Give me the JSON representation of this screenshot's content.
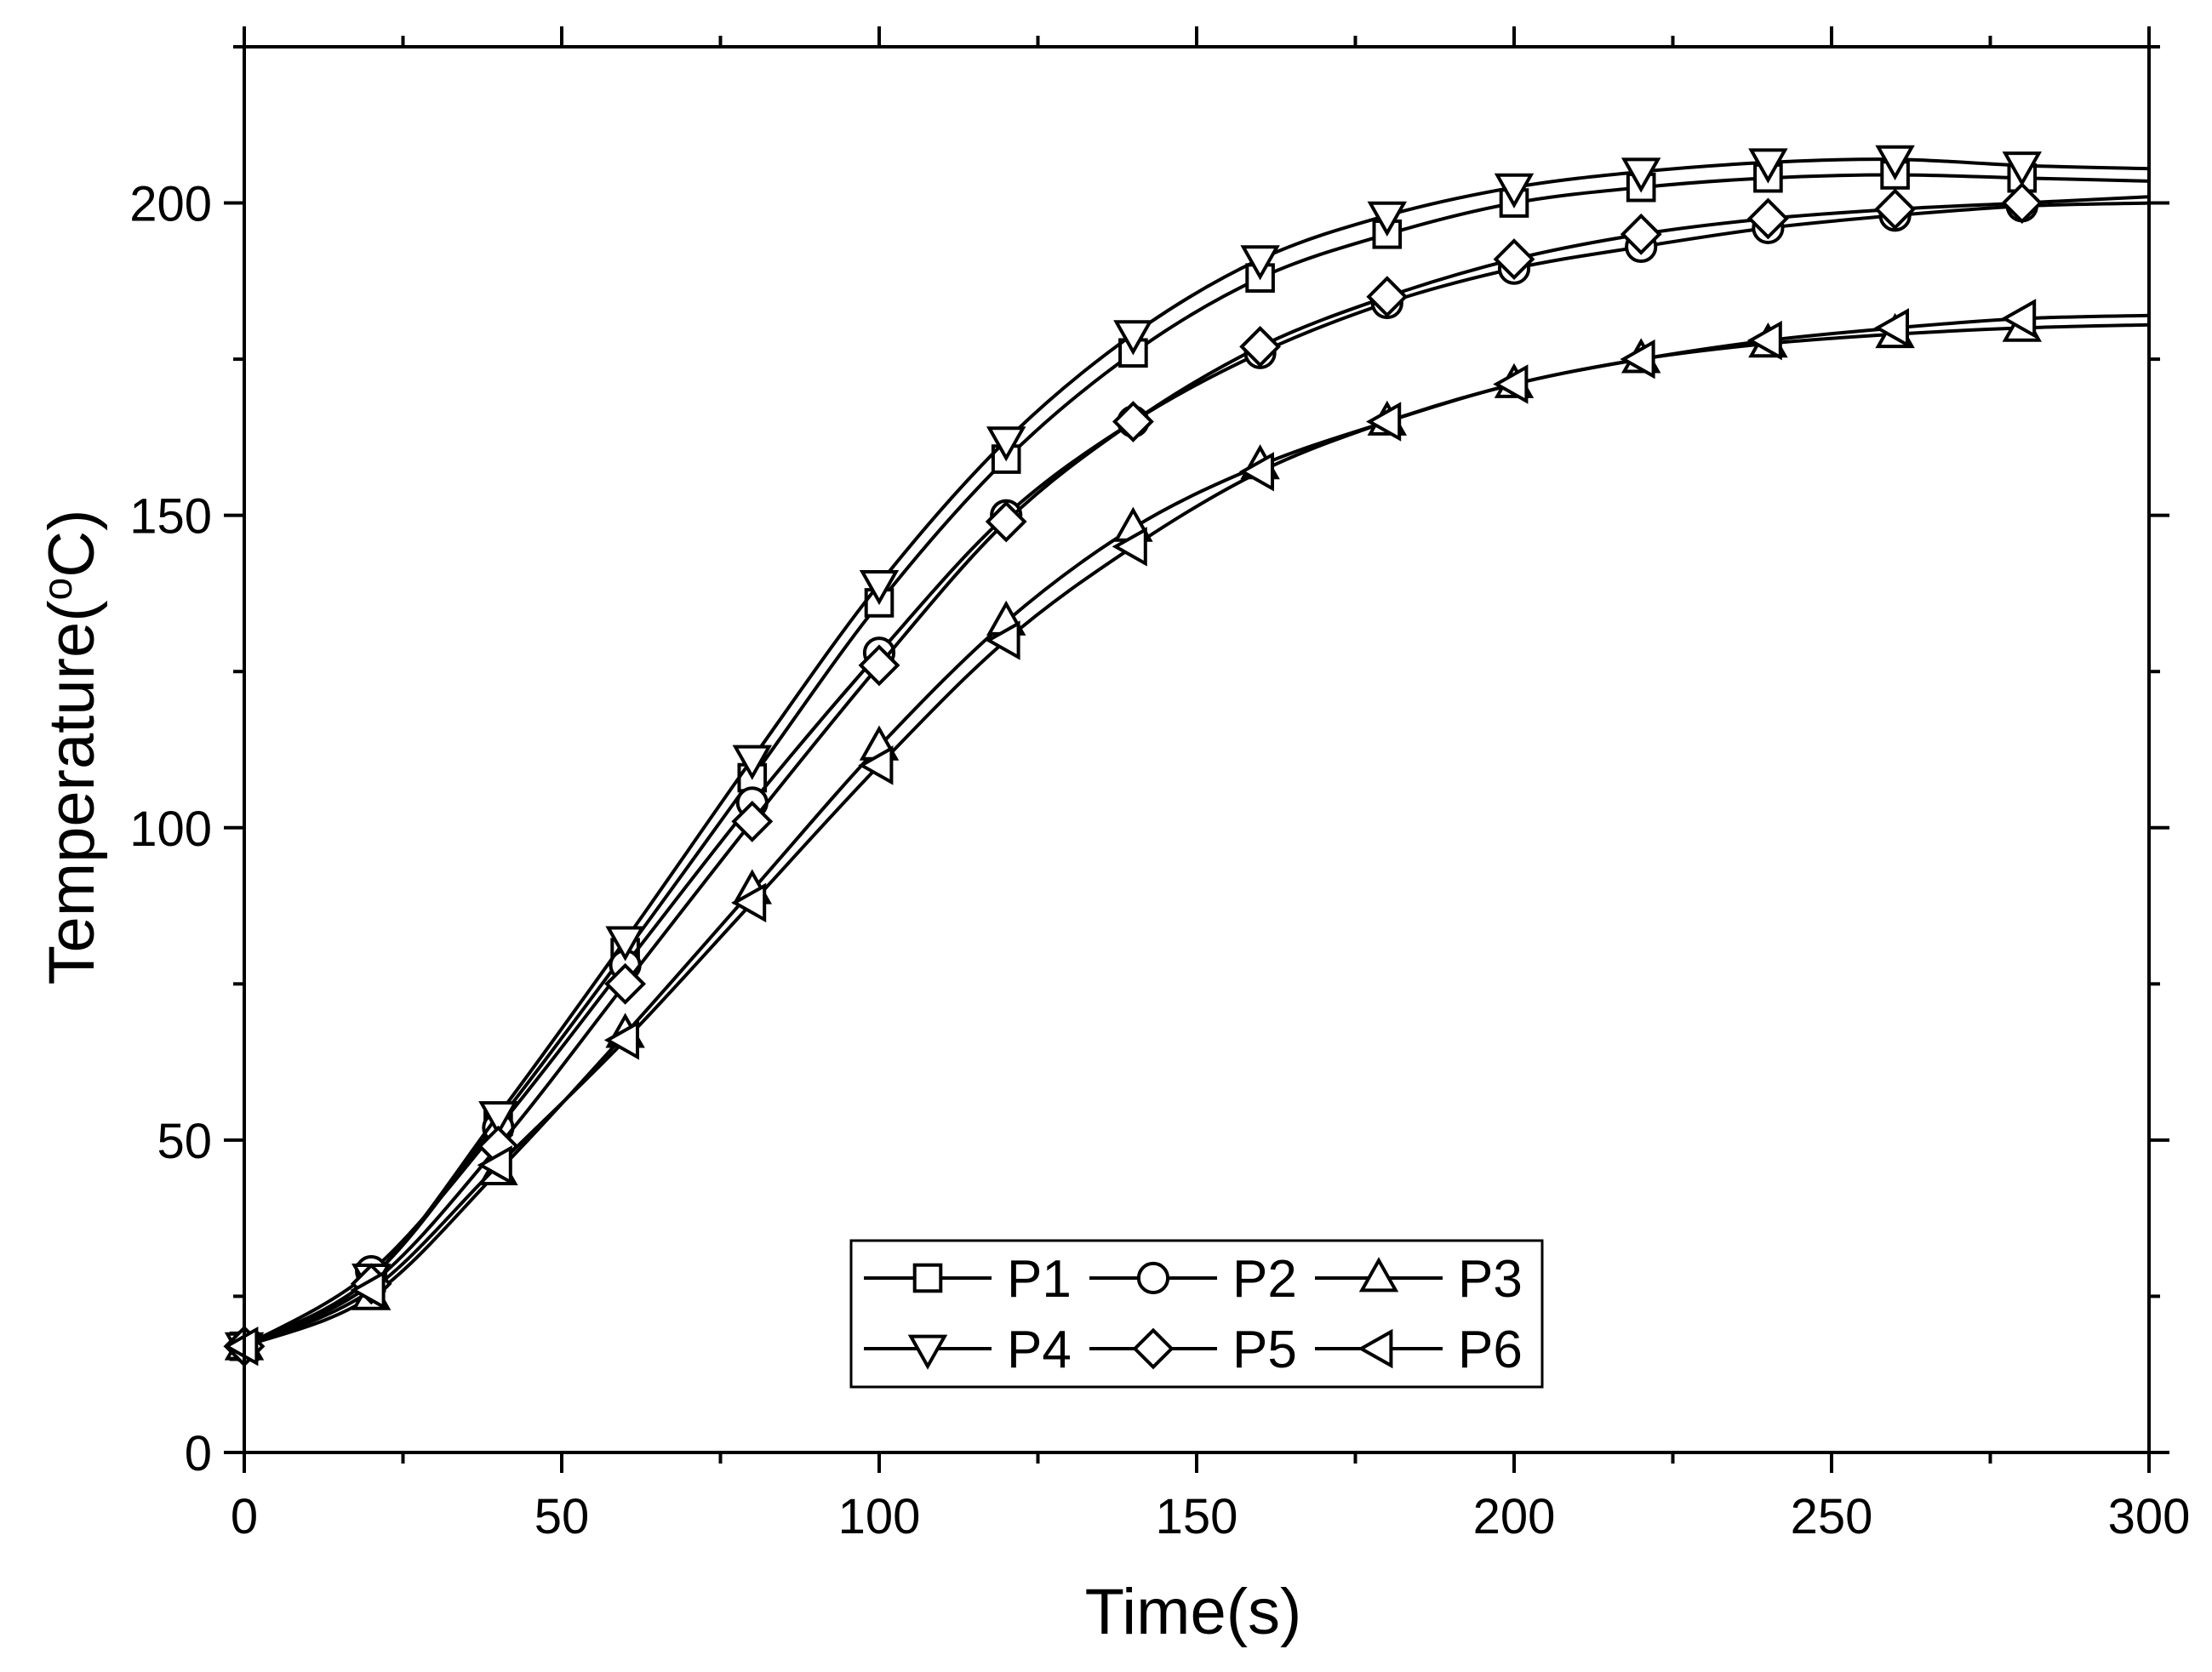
{
  "chart_data": {
    "type": "line",
    "title": "",
    "xlabel": "Time(s)",
    "ylabel_parts": [
      "Temperature(",
      "o",
      "C)"
    ],
    "xlim": [
      0,
      300
    ],
    "ylim": [
      0,
      225
    ],
    "x_ticks": [
      0,
      50,
      100,
      150,
      200,
      250,
      300
    ],
    "x_tick_labels": [
      "0",
      "50",
      "100",
      "150",
      "200",
      "250",
      "300"
    ],
    "y_ticks": [
      0,
      50,
      100,
      150,
      200
    ],
    "y_tick_labels": [
      "0",
      "50",
      "100",
      "150",
      "200"
    ],
    "x_minor_ticks": [
      25,
      75,
      125,
      175,
      225,
      275
    ],
    "y_minor_ticks": [
      25,
      75,
      125,
      175,
      225
    ],
    "grid": false,
    "legend_position": "bottom-center",
    "x": [
      0,
      20,
      40,
      60,
      80,
      100,
      120,
      140,
      160,
      180,
      200,
      220,
      240,
      260,
      280,
      300
    ],
    "series": [
      {
        "name": "P1",
        "marker": "square",
        "values": [
          17,
          28,
          53,
          80,
          108,
          136,
          159,
          176,
          188,
          195,
          200,
          202.5,
          204,
          204.5,
          204,
          203.5
        ]
      },
      {
        "name": "P2",
        "marker": "circle",
        "values": [
          17,
          29,
          52,
          78,
          104,
          128,
          150,
          165,
          176,
          184,
          189.5,
          193,
          196,
          198,
          199.5,
          200
        ]
      },
      {
        "name": "P3",
        "marker": "triangle-up",
        "values": [
          17,
          25,
          45,
          67,
          90,
          113,
          133,
          148,
          158,
          165,
          171,
          175,
          177.5,
          179,
          180,
          180.5
        ]
      },
      {
        "name": "P4",
        "marker": "triangle-down",
        "values": [
          17,
          28,
          54,
          82,
          111,
          139,
          162,
          179,
          191,
          198,
          202.5,
          205,
          206.5,
          207,
          206,
          205.5
        ]
      },
      {
        "name": "P5",
        "marker": "diamond",
        "values": [
          17,
          27,
          49,
          75,
          101,
          126,
          149,
          165,
          177,
          185,
          191,
          195,
          197.5,
          199,
          200,
          201
        ]
      },
      {
        "name": "P6",
        "marker": "triangle-left",
        "values": [
          17,
          26,
          46,
          66,
          88,
          110,
          130,
          145,
          157,
          165,
          171,
          175,
          178,
          180,
          181.5,
          182
        ]
      }
    ]
  }
}
